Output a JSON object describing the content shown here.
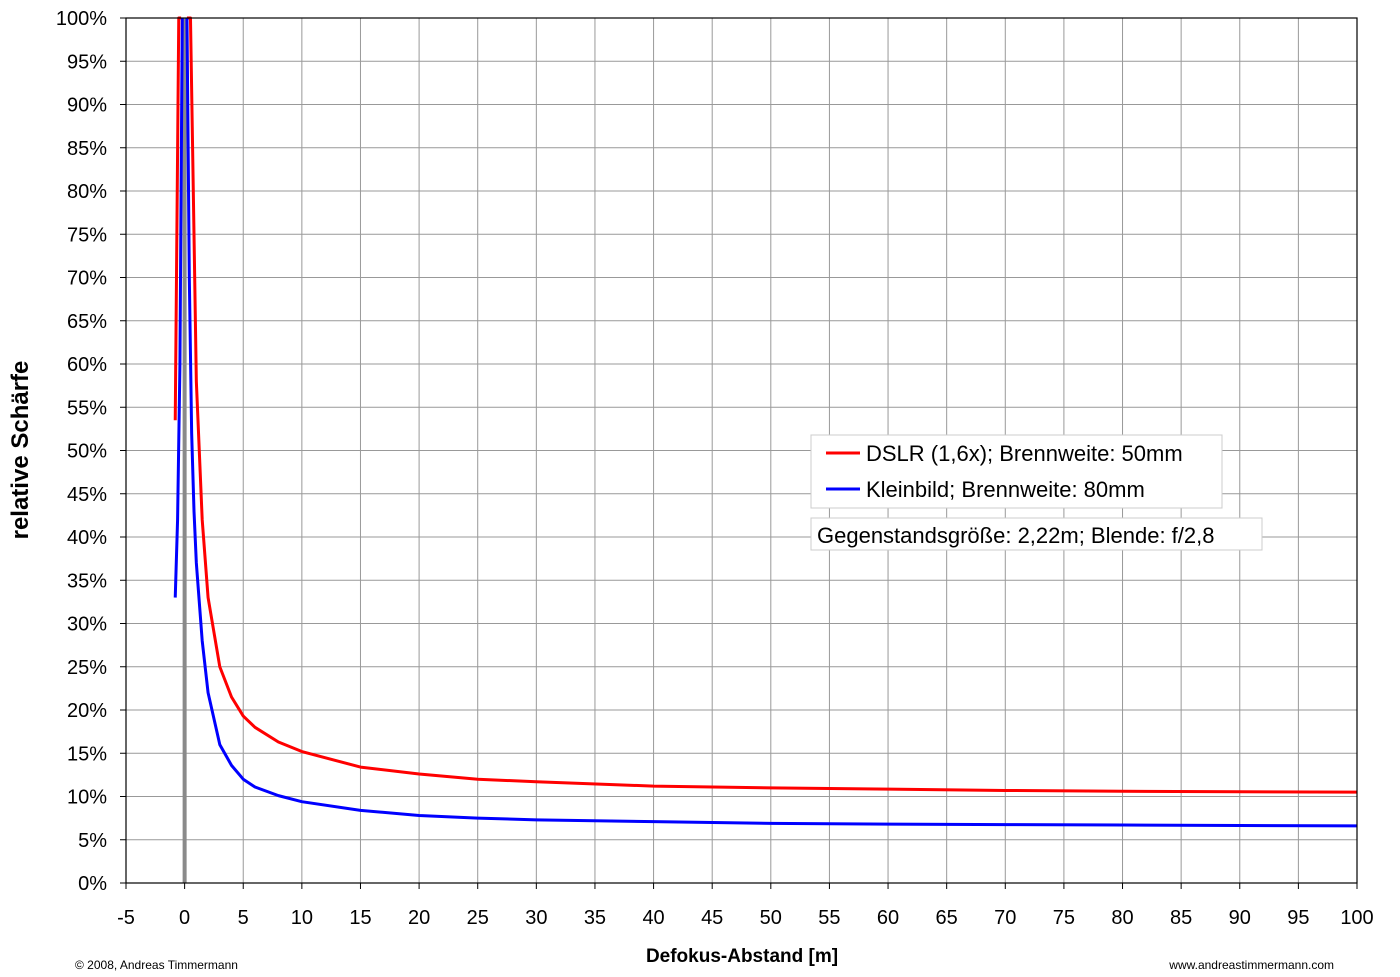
{
  "chart_data": {
    "type": "line",
    "xlabel": "Defokus-Abstand [m]",
    "ylabel": "relative Schärfe",
    "xlim": [
      -5,
      100
    ],
    "ylim": [
      0,
      100
    ],
    "x_ticks": [
      -5,
      0,
      5,
      10,
      15,
      20,
      25,
      30,
      35,
      40,
      45,
      50,
      55,
      60,
      65,
      70,
      75,
      80,
      85,
      90,
      95,
      100
    ],
    "x_tick_labels": [
      "-5",
      "0",
      "5",
      "10",
      "15",
      "20",
      "25",
      "30",
      "35",
      "40",
      "45",
      "50",
      "55",
      "60",
      "65",
      "70",
      "75",
      "80",
      "85",
      "90",
      "95",
      "100"
    ],
    "y_ticks": [
      0,
      5,
      10,
      15,
      20,
      25,
      30,
      35,
      40,
      45,
      50,
      55,
      60,
      65,
      70,
      75,
      80,
      85,
      90,
      95,
      100
    ],
    "y_tick_labels": [
      "0%",
      "5%",
      "10%",
      "15%",
      "20%",
      "25%",
      "30%",
      "35%",
      "40%",
      "45%",
      "50%",
      "55%",
      "60%",
      "65%",
      "70%",
      "75%",
      "80%",
      "85%",
      "90%",
      "95%",
      "100%"
    ],
    "grid": true,
    "legend_placement": "center-right",
    "series": [
      {
        "name": "DSLR (1,6x); Brennweite: 50mm",
        "color": "#ff0000",
        "x": [
          -0.8,
          -0.5,
          -0.3,
          0.2,
          0.5,
          0.8,
          1.0,
          1.5,
          2.0,
          3.0,
          4.0,
          5.0,
          6.0,
          8.0,
          10.0,
          15.0,
          20.0,
          25.0,
          30.0,
          40.0,
          50.0,
          60.0,
          70.0,
          80.0,
          90.0,
          100.0
        ],
        "y": [
          53.5,
          100,
          100,
          100,
          100,
          75.0,
          58.0,
          42.0,
          33.0,
          25.0,
          21.5,
          19.3,
          18.0,
          16.3,
          15.2,
          13.4,
          12.6,
          12.0,
          11.7,
          11.2,
          11.0,
          10.85,
          10.7,
          10.6,
          10.55,
          10.5
        ]
      },
      {
        "name": "Kleinbild; Brennweite: 80mm",
        "color": "#0000ff",
        "x": [
          -0.8,
          -0.6,
          -0.4,
          -0.2,
          0.2,
          0.4,
          0.6,
          0.8,
          1.0,
          1.5,
          2.0,
          3.0,
          4.0,
          5.0,
          6.0,
          8.0,
          10.0,
          15.0,
          20.0,
          25.0,
          30.0,
          40.0,
          50.0,
          60.0,
          70.0,
          80.0,
          90.0,
          100.0
        ],
        "y": [
          33.0,
          42.0,
          60.0,
          100,
          100,
          70.0,
          52.0,
          43.0,
          37.0,
          28.0,
          22.0,
          16.0,
          13.6,
          12.0,
          11.1,
          10.1,
          9.4,
          8.4,
          7.8,
          7.5,
          7.3,
          7.1,
          6.9,
          6.8,
          6.75,
          6.7,
          6.65,
          6.6
        ]
      }
    ],
    "annotations": [
      "Gegenstandsgröße: 2,22m; Blende: f/2,8"
    ]
  },
  "footer": {
    "copyright": "© 2008, Andreas Timmermann",
    "website": "www.andreastimmermann.com"
  }
}
